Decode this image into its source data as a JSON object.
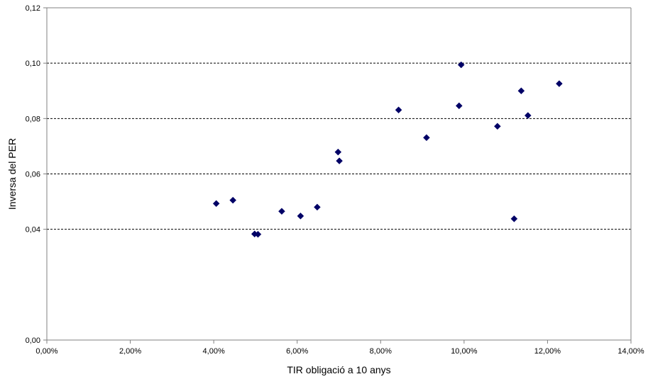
{
  "chart_data": {
    "type": "scatter",
    "title": "",
    "xlabel": "TIR obligació a 10 anys",
    "ylabel": "Inversa del PER",
    "xlim": [
      0,
      0.14
    ],
    "ylim": [
      0,
      0.12
    ],
    "x_ticks": [
      0,
      0.02,
      0.04,
      0.06,
      0.08,
      0.1,
      0.12,
      0.14
    ],
    "x_tick_labels": [
      "0,00%",
      "2,00%",
      "4,00%",
      "6,00%",
      "8,00%",
      "10,00%",
      "12,00%",
      "14,00%"
    ],
    "y_ticks": [
      0,
      0.04,
      0.06,
      0.08,
      0.1,
      0.12
    ],
    "y_tick_labels": [
      "0,00",
      "0,04",
      "0,06",
      "0,08",
      "0,10",
      "0,12"
    ],
    "gridlines_y": [
      0.04,
      0.06,
      0.08,
      0.1
    ],
    "grid": "horizontal dashed",
    "legend": "none",
    "marker": "diamond",
    "marker_color": "#000066",
    "points": [
      {
        "x": 0.0406,
        "y": 0.0493
      },
      {
        "x": 0.0446,
        "y": 0.0505
      },
      {
        "x": 0.0498,
        "y": 0.0383
      },
      {
        "x": 0.0506,
        "y": 0.0382
      },
      {
        "x": 0.0563,
        "y": 0.0465
      },
      {
        "x": 0.0608,
        "y": 0.0448
      },
      {
        "x": 0.0648,
        "y": 0.048
      },
      {
        "x": 0.0698,
        "y": 0.0679
      },
      {
        "x": 0.0701,
        "y": 0.0647
      },
      {
        "x": 0.0843,
        "y": 0.0831
      },
      {
        "x": 0.091,
        "y": 0.0731
      },
      {
        "x": 0.0988,
        "y": 0.0846
      },
      {
        "x": 0.0993,
        "y": 0.0994
      },
      {
        "x": 0.108,
        "y": 0.0772
      },
      {
        "x": 0.112,
        "y": 0.0438
      },
      {
        "x": 0.1137,
        "y": 0.09
      },
      {
        "x": 0.1153,
        "y": 0.0811
      },
      {
        "x": 0.1228,
        "y": 0.0926
      }
    ]
  }
}
